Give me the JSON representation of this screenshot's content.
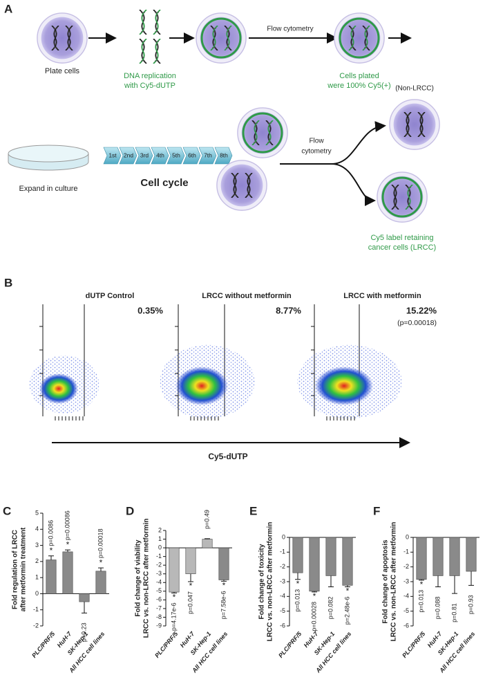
{
  "panel_a": {
    "label": "A",
    "plate_cells": "Plate cells",
    "dna_replication": [
      "DNA replication",
      "with Cy5-dUTP"
    ],
    "flow_cytometry_1": "Flow cytometry",
    "cells_plated": [
      "Cells plated",
      "were 100% Cy5(+)"
    ],
    "expand": "Expand in culture",
    "cycle_labels": [
      "1st",
      "2nd",
      "3rd",
      "4th",
      "5th",
      "6th",
      "7th",
      "8th"
    ],
    "cell_cycle": "Cell cycle",
    "flow_cytometry_2": [
      "Flow",
      "cytometry"
    ],
    "non_lrcc": "(Non-LRCC)",
    "lrcc": [
      "Cy5 label retaining",
      "cancer cells (LRCC)"
    ]
  },
  "panel_b": {
    "label": "B",
    "plots": [
      {
        "title": "dUTP Control",
        "percent": "0.35%"
      },
      {
        "title": "LRCC without metformin",
        "percent": "8.77%"
      },
      {
        "title": "LRCC with metformin",
        "percent": "15.22%",
        "p_value": "(p=0.00018)"
      }
    ],
    "x_axis_label": "Cy5-dUTP"
  },
  "chart_data": [
    {
      "type": "bar",
      "label": "C",
      "ylabel": [
        "Fold regulation of LRCC",
        "after metformin treatment"
      ],
      "categories": [
        "PLC/PRF/5",
        "HuH-7",
        "SK-Hep-1",
        "All HCC cell lines"
      ],
      "values": [
        2.1,
        2.6,
        -0.5,
        1.4
      ],
      "errors": [
        0.25,
        0.12,
        0.7,
        0.2
      ],
      "colors": [
        "#8a8a8a",
        "#8a8a8a",
        "#8a8a8a",
        "#8a8a8a"
      ],
      "p_labels": [
        "p=0.0086",
        "p=0.00086",
        "p=0.23",
        "p=0.00018"
      ],
      "significance": [
        "*",
        "*",
        null,
        "*"
      ],
      "ylim": [
        -2,
        5
      ],
      "yticks": [
        -2,
        -1,
        0,
        1,
        2,
        3,
        4,
        5
      ]
    },
    {
      "type": "bar",
      "label": "D",
      "ylabel": [
        "Fold change of viability",
        "LRCC vs. non-LRCC after metformin"
      ],
      "categories": [
        "PLC/PRF/5",
        "HuH-7",
        "SK-Hep-1",
        "All HCC cell lines"
      ],
      "values": [
        -5.1,
        -3.0,
        1.0,
        -3.7
      ],
      "errors": [
        0.1,
        0.9,
        0.05,
        0.15
      ],
      "colors": [
        "#b8b8b8",
        "#b8b8b8",
        "#b8b8b8",
        "#8a8a8a"
      ],
      "p_labels": [
        "p=4.17e-6",
        "p=0.047",
        "p=0.49",
        "p=7.58e-6"
      ],
      "significance": [
        "*",
        "*",
        null,
        "*"
      ],
      "ylim": [
        -9,
        2
      ],
      "yticks": [
        -9,
        -8,
        -7,
        -6,
        -5,
        -4,
        -3,
        -2,
        -1,
        0,
        1,
        2
      ]
    },
    {
      "type": "bar",
      "label": "E",
      "ylabel": [
        "Fold change of toxicity",
        "LRCC vs. non-LRCC after metformin"
      ],
      "categories": [
        "PLC/PRF/5",
        "HuH-7",
        "SK-Hep-1",
        "All HCC cell lines"
      ],
      "values": [
        -2.4,
        -3.65,
        -2.6,
        -3.25
      ],
      "errors": [
        0.45,
        0.05,
        0.75,
        0.1
      ],
      "colors": [
        "#8a8a8a",
        "#8a8a8a",
        "#8a8a8a",
        "#8a8a8a"
      ],
      "p_labels": [
        "p=0.013",
        "p=0.00028",
        "p=0.082",
        "p=2.48e-6"
      ],
      "significance": [
        "*",
        "*",
        null,
        "*"
      ],
      "ylim": [
        -6,
        0
      ],
      "yticks": [
        -6,
        -5,
        -4,
        -3,
        -2,
        -1,
        0
      ]
    },
    {
      "type": "bar",
      "label": "F",
      "ylabel": [
        "Fold change of apoptosis",
        "LRCC vs. non-LRCC after metformin"
      ],
      "categories": [
        "PLC/PRF/5",
        "HuH-7",
        "SK-Hep-1",
        "All HCC cell lines"
      ],
      "values": [
        -2.85,
        -2.6,
        -2.6,
        -2.3
      ],
      "errors": [
        0.05,
        0.75,
        1.2,
        0.95
      ],
      "colors": [
        "#8a8a8a",
        "#8a8a8a",
        "#8a8a8a",
        "#8a8a8a"
      ],
      "p_labels": [
        "p=0.013",
        "p=0.088",
        "p=0.81",
        "p=0.93"
      ],
      "significance": [
        "*",
        null,
        null,
        null
      ],
      "ylim": [
        -6,
        0
      ],
      "yticks": [
        -6,
        -5,
        -4,
        -3,
        -2,
        -1,
        0
      ]
    }
  ]
}
